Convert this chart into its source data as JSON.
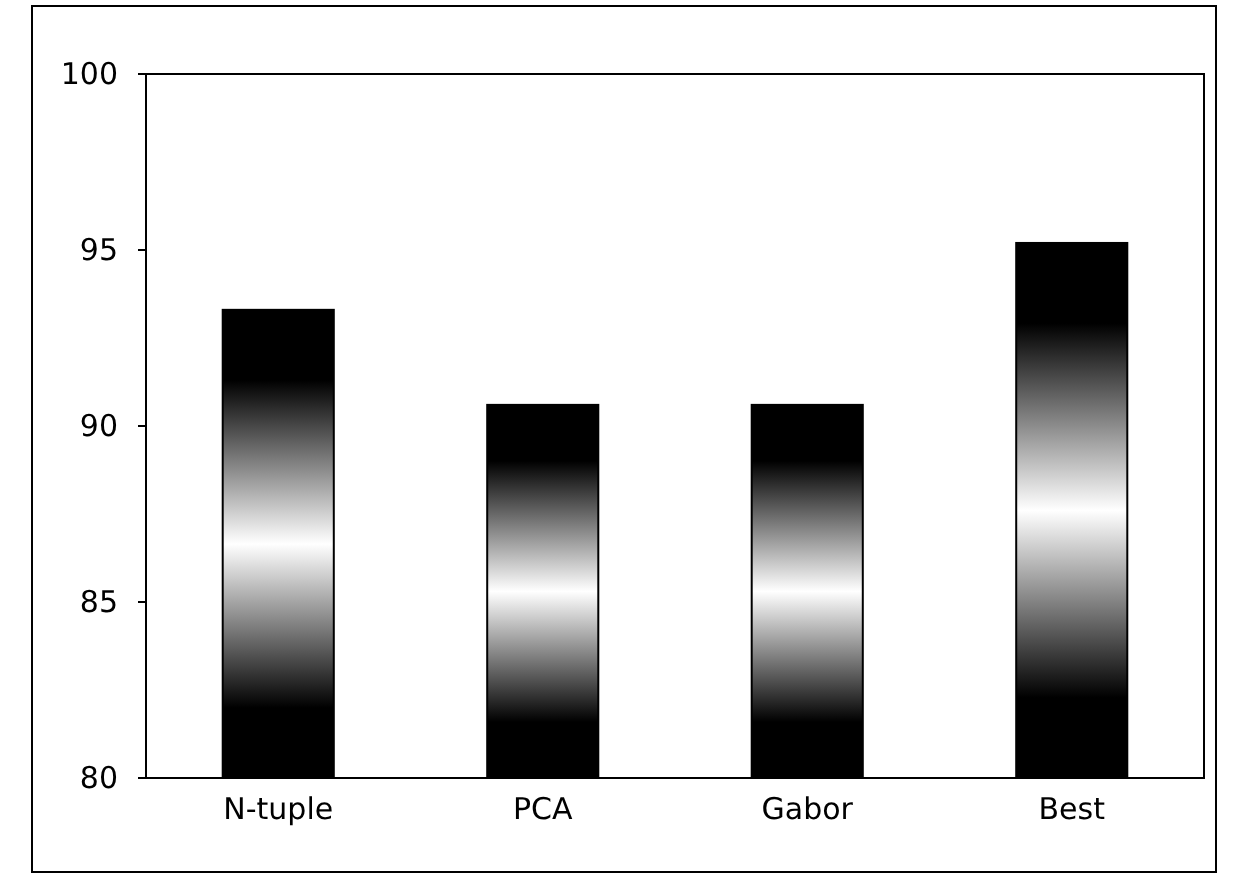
{
  "chart_data": {
    "type": "bar",
    "categories": [
      "N-tuple",
      "PCA",
      "Gabor",
      "Best"
    ],
    "values": [
      93.3,
      90.6,
      90.6,
      95.2
    ],
    "color": "#000000",
    "ylim": [
      80,
      100
    ],
    "yticks": [
      80,
      85,
      90,
      95,
      100
    ],
    "grid": false
  }
}
